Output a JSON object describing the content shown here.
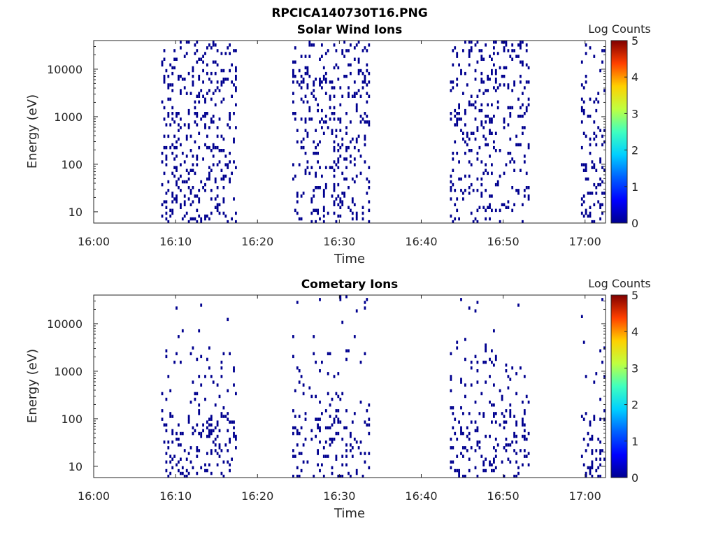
{
  "figure": {
    "title": "RPCICA140730T16.PNG"
  },
  "colorbar": {
    "label": "Log Counts",
    "ticks": [
      "0",
      "1",
      "2",
      "3",
      "4",
      "5"
    ],
    "colormap": "jet",
    "colors": [
      "#00008f",
      "#0000ff",
      "#0080ff",
      "#00ffff",
      "#80ff80",
      "#ffff00",
      "#ff8000",
      "#ff0000",
      "#800000"
    ]
  },
  "chart_data": [
    {
      "type": "heatmap",
      "title": "Solar Wind Ions",
      "xlabel": "Time",
      "ylabel": "Energy (eV)",
      "yscale": "log",
      "x_ticks": [
        "16:00",
        "16:10",
        "16:20",
        "16:30",
        "16:40",
        "16:50",
        "17:00"
      ],
      "y_ticks": [
        "10",
        "100",
        "1000",
        "10000"
      ],
      "clim": [
        0,
        5
      ],
      "data_intervals": [
        [
          "16:08:15",
          "16:17:30"
        ],
        [
          "16:24:15",
          "16:33:45"
        ],
        [
          "16:43:30",
          "16:53:15"
        ],
        [
          "16:59:30",
          "17:02:30"
        ]
      ],
      "dominant_value": "0 (log counts, dark blue)"
    },
    {
      "type": "heatmap",
      "title": "Cometary Ions",
      "xlabel": "Time",
      "ylabel": "Energy (eV)",
      "yscale": "log",
      "x_ticks": [
        "16:00",
        "16:10",
        "16:20",
        "16:30",
        "16:40",
        "16:50",
        "17:00"
      ],
      "y_ticks": [
        "10",
        "100",
        "1000",
        "10000"
      ],
      "clim": [
        0,
        5
      ],
      "data_intervals": [
        [
          "16:08:15",
          "16:17:30"
        ],
        [
          "16:24:15",
          "16:33:45"
        ],
        [
          "16:43:30",
          "16:53:15"
        ],
        [
          "16:59:30",
          "17:02:30"
        ]
      ],
      "dominant_value": "0 (log counts, dark blue)"
    }
  ]
}
